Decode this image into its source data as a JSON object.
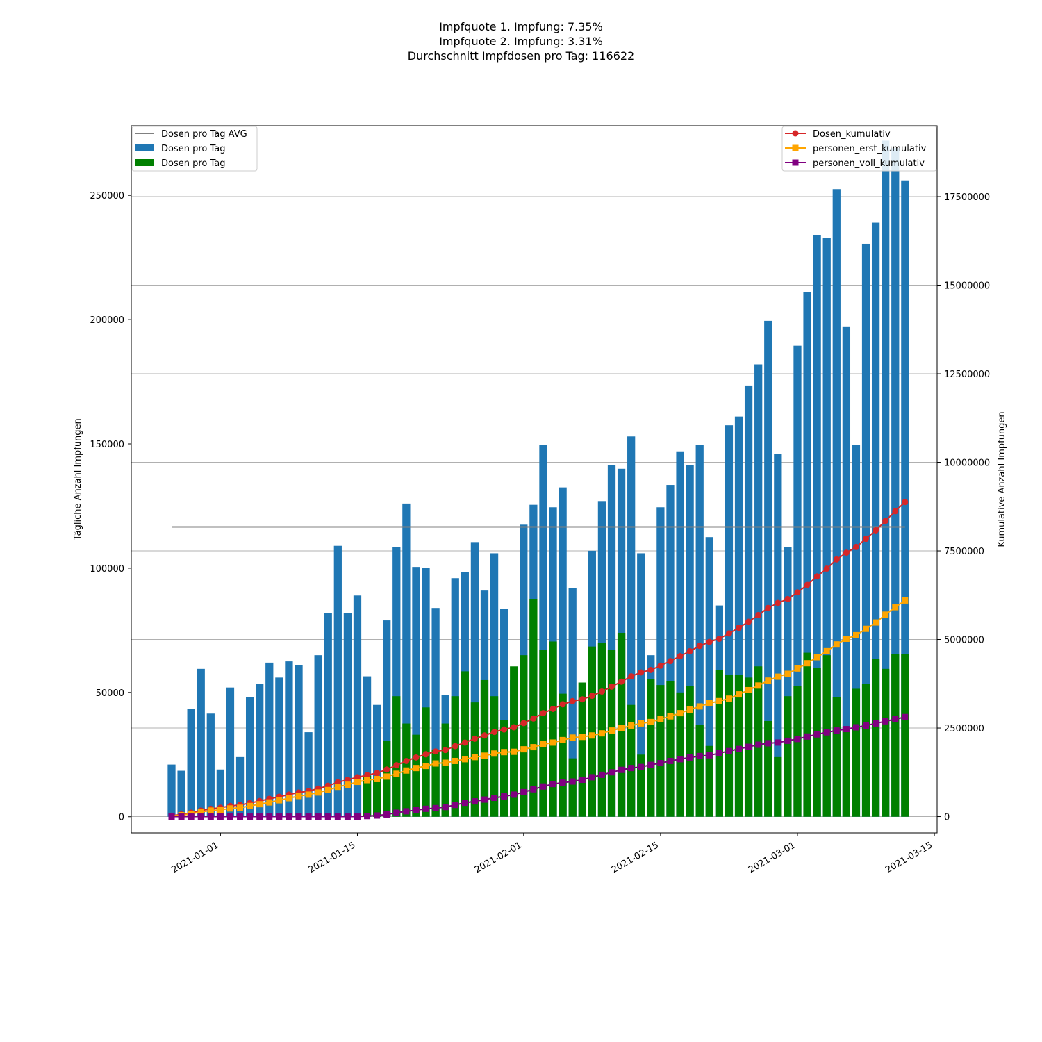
{
  "figure": {
    "title_lines": [
      "Impfquote 1. Impfung: 7.35%",
      "Impfquote 2. Impfung: 3.31%",
      "Durchschnitt Impfdosen pro Tag: 116622"
    ]
  },
  "chart_data": {
    "type": "bar",
    "x_start_date": "2020-12-27",
    "x_end_date": "2021-03-14",
    "dates": [
      "2020-12-27",
      "2020-12-28",
      "2020-12-29",
      "2020-12-30",
      "2020-12-31",
      "2021-01-01",
      "2021-01-02",
      "2021-01-03",
      "2021-01-04",
      "2021-01-05",
      "2021-01-06",
      "2021-01-07",
      "2021-01-08",
      "2021-01-09",
      "2021-01-10",
      "2021-01-11",
      "2021-01-12",
      "2021-01-13",
      "2021-01-14",
      "2021-01-15",
      "2021-01-16",
      "2021-01-17",
      "2021-01-18",
      "2021-01-19",
      "2021-01-20",
      "2021-01-21",
      "2021-01-22",
      "2021-01-23",
      "2021-01-24",
      "2021-01-25",
      "2021-01-26",
      "2021-01-27",
      "2021-01-28",
      "2021-01-29",
      "2021-01-30",
      "2021-01-31",
      "2021-02-01",
      "2021-02-02",
      "2021-02-03",
      "2021-02-04",
      "2021-02-05",
      "2021-02-06",
      "2021-02-07",
      "2021-02-08",
      "2021-02-09",
      "2021-02-10",
      "2021-02-11",
      "2021-02-12",
      "2021-02-13",
      "2021-02-14",
      "2021-02-15",
      "2021-02-16",
      "2021-02-17",
      "2021-02-18",
      "2021-02-19",
      "2021-02-20",
      "2021-02-21",
      "2021-02-22",
      "2021-02-23",
      "2021-02-24",
      "2021-02-25",
      "2021-02-26",
      "2021-02-27",
      "2021-02-28",
      "2021-03-01",
      "2021-03-02",
      "2021-03-03",
      "2021-03-04",
      "2021-03-05",
      "2021-03-06",
      "2021-03-07",
      "2021-03-08",
      "2021-03-09",
      "2021-03-10",
      "2021-03-11",
      "2021-03-12"
    ],
    "y_left": {
      "label": "Tägliche Anzahl Impfungen",
      "ylim": [
        -6500,
        278000
      ],
      "ticks": [
        0,
        50000,
        100000,
        150000,
        200000,
        250000
      ]
    },
    "y_right": {
      "label": "Kumulative Anzahl Impfungen",
      "ylim": [
        -460000,
        19500000
      ],
      "ticks": [
        0,
        2500000,
        5000000,
        7500000,
        10000000,
        12500000,
        15000000,
        17500000
      ]
    },
    "x_ticks": [
      {
        "date": "2021-01-01",
        "label": "2021-01-01"
      },
      {
        "date": "2021-01-15",
        "label": "2021-01-15"
      },
      {
        "date": "2021-02-01",
        "label": "2021-02-01"
      },
      {
        "date": "2021-02-15",
        "label": "2021-02-15"
      },
      {
        "date": "2021-03-01",
        "label": "2021-03-01"
      },
      {
        "date": "2021-03-15",
        "label": "2021-03-15"
      }
    ],
    "grid": "horizontal lines at right-axis ticks",
    "legend_left": {
      "placement": "upper-left",
      "entries": [
        {
          "label": "Dosen pro Tag AVG",
          "kind": "line",
          "color": "#808080"
        },
        {
          "label": "Dosen pro Tag",
          "kind": "patch",
          "color": "#1f77b4"
        },
        {
          "label": "Dosen pro Tag",
          "kind": "patch",
          "color": "#008000"
        }
      ]
    },
    "legend_right": {
      "placement": "upper-right",
      "entries": [
        {
          "label": "Dosen_kumulativ",
          "marker": "circle",
          "color": "#d62728"
        },
        {
          "label": "personen_erst_kumulativ",
          "marker": "square",
          "color": "#ffa500"
        },
        {
          "label": "personen_voll_kumulativ",
          "marker": "square",
          "color": "#800080"
        }
      ]
    },
    "series": [
      {
        "name": "Dosen pro Tag",
        "axis": "left",
        "kind": "bar",
        "color": "#1f77b4",
        "values": [
          21000,
          18500,
          43500,
          59500,
          41500,
          19000,
          52000,
          24000,
          48000,
          53500,
          62000,
          56000,
          62500,
          61000,
          34000,
          65000,
          82000,
          109000,
          82000,
          89000,
          56500,
          45000,
          79000,
          108500,
          126000,
          100500,
          100000,
          84000,
          49000,
          96000,
          98500,
          110500,
          91000,
          106000,
          83500,
          55000,
          117500,
          125500,
          149500,
          124500,
          132500,
          92000,
          50500,
          107000,
          127000,
          141500,
          140000,
          153000,
          106000,
          65000,
          124500,
          133500,
          147000,
          141500,
          149500,
          112500,
          85000,
          157500,
          161000,
          173500,
          182000,
          199500,
          146000,
          108500,
          189500,
          211000,
          234000,
          233000,
          252500,
          197000,
          149500,
          230500,
          239000,
          272000,
          269000,
          256000
        ]
      },
      {
        "name": "Dosen pro Tag",
        "axis": "left",
        "kind": "bar",
        "color": "#008000",
        "values": [
          0,
          0,
          0,
          0,
          0,
          0,
          0,
          0,
          0,
          0,
          0,
          0,
          0,
          0,
          0,
          0,
          0,
          0,
          0,
          0,
          16500,
          15000,
          30500,
          48500,
          37500,
          33000,
          44000,
          27000,
          37500,
          48500,
          58500,
          46000,
          55000,
          48500,
          39000,
          60500,
          65000,
          87500,
          67000,
          70500,
          49500,
          23500,
          54000,
          68500,
          70000,
          67000,
          74000,
          45000,
          25000,
          55500,
          53000,
          54500,
          50000,
          52500,
          37000,
          28500,
          59000,
          57000,
          57000,
          56000,
          60500,
          38500,
          24000,
          48500,
          52500,
          66000,
          60000,
          65000,
          48000,
          35000,
          51500,
          53500,
          63500,
          59500,
          65500,
          65500
        ]
      },
      {
        "name": "Dosen pro Tag AVG",
        "axis": "left",
        "kind": "line",
        "color": "#808080",
        "value": 116622
      },
      {
        "name": "Dosen_kumulativ",
        "axis": "right",
        "kind": "line",
        "marker": "circle",
        "color": "#d62728",
        "values": [
          25000,
          60000,
          110000,
          170000,
          220000,
          250000,
          300000,
          330000,
          380000,
          440000,
          500000,
          560000,
          620000,
          680000,
          720000,
          790000,
          870000,
          970000,
          1040000,
          1110000,
          1170000,
          1230000,
          1330000,
          1450000,
          1570000,
          1670000,
          1760000,
          1840000,
          1880000,
          1990000,
          2090000,
          2200000,
          2290000,
          2390000,
          2460000,
          2520000,
          2640000,
          2770000,
          2920000,
          3040000,
          3170000,
          3260000,
          3310000,
          3410000,
          3530000,
          3670000,
          3810000,
          3960000,
          4070000,
          4140000,
          4260000,
          4390000,
          4530000,
          4670000,
          4820000,
          4930000,
          5020000,
          5170000,
          5330000,
          5500000,
          5690000,
          5890000,
          6030000,
          6140000,
          6330000,
          6540000,
          6780000,
          7000000,
          7260000,
          7450000,
          7610000,
          7840000,
          8080000,
          8350000,
          8620000,
          8880000
        ]
      },
      {
        "name": "personen_erst_kumulativ",
        "axis": "right",
        "kind": "line",
        "marker": "square",
        "color": "#ffa500",
        "values": [
          20000,
          40000,
          80000,
          130000,
          170000,
          190000,
          230000,
          250000,
          300000,
          350000,
          400000,
          460000,
          520000,
          580000,
          620000,
          680000,
          750000,
          840000,
          900000,
          980000,
          1030000,
          1060000,
          1130000,
          1210000,
          1300000,
          1370000,
          1430000,
          1500000,
          1520000,
          1570000,
          1620000,
          1680000,
          1720000,
          1780000,
          1820000,
          1830000,
          1900000,
          1960000,
          2040000,
          2090000,
          2160000,
          2230000,
          2250000,
          2290000,
          2350000,
          2430000,
          2500000,
          2570000,
          2630000,
          2670000,
          2750000,
          2830000,
          2920000,
          3020000,
          3110000,
          3200000,
          3260000,
          3330000,
          3450000,
          3570000,
          3700000,
          3840000,
          3950000,
          4030000,
          4180000,
          4330000,
          4500000,
          4670000,
          4860000,
          5020000,
          5120000,
          5300000,
          5480000,
          5700000,
          5910000,
          6100000
        ]
      },
      {
        "name": "personen_voll_kumulativ",
        "axis": "right",
        "kind": "line",
        "marker": "square",
        "color": "#800080",
        "values": [
          0,
          0,
          0,
          0,
          0,
          0,
          0,
          0,
          0,
          0,
          0,
          0,
          0,
          0,
          0,
          0,
          0,
          0,
          0,
          0,
          15000,
          30000,
          60000,
          110000,
          150000,
          180000,
          220000,
          240000,
          270000,
          330000,
          390000,
          430000,
          480000,
          530000,
          570000,
          620000,
          690000,
          770000,
          850000,
          920000,
          960000,
          990000,
          1040000,
          1110000,
          1180000,
          1250000,
          1320000,
          1370000,
          1400000,
          1460000,
          1510000,
          1570000,
          1620000,
          1670000,
          1710000,
          1730000,
          1790000,
          1850000,
          1910000,
          1970000,
          2030000,
          2070000,
          2090000,
          2140000,
          2190000,
          2260000,
          2320000,
          2380000,
          2430000,
          2470000,
          2520000,
          2570000,
          2630000,
          2690000,
          2750000,
          2810000
        ]
      }
    ]
  }
}
